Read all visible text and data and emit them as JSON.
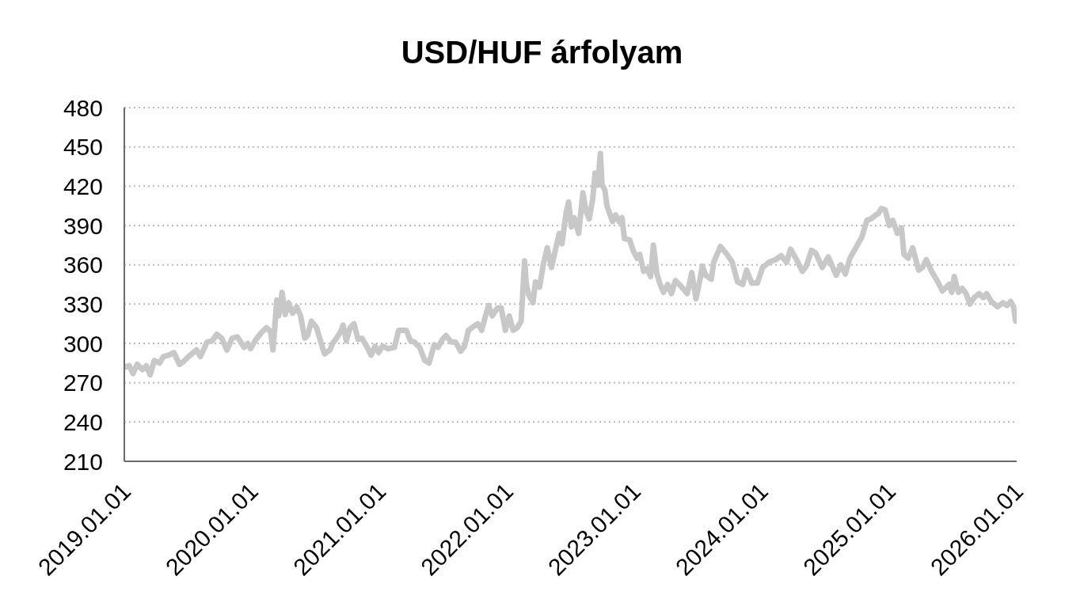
{
  "chart_data": {
    "type": "line",
    "title": "USD/HUF árfolyam",
    "x": [
      "2019-01-01",
      "2019-01-15",
      "2019-01-26",
      "2019-02-07",
      "2019-02-22",
      "2019-03-05",
      "2019-03-16",
      "2019-03-28",
      "2019-04-12",
      "2019-04-23",
      "2019-05-08",
      "2019-05-23",
      "2019-06-08",
      "2019-06-19",
      "2019-07-04",
      "2019-07-27",
      "2019-08-07",
      "2019-08-26",
      "2019-09-10",
      "2019-09-23",
      "2019-10-07",
      "2019-10-22",
      "2019-11-06",
      "2019-11-21",
      "2019-12-10",
      "2019-12-21",
      "2019-12-29",
      "2020-01-13",
      "2020-01-28",
      "2020-02-12",
      "2020-02-24",
      "2020-03-02",
      "2020-03-13",
      "2020-03-18",
      "2020-03-28",
      "2020-04-06",
      "2020-04-16",
      "2020-04-27",
      "2020-05-09",
      "2020-05-20",
      "2020-06-01",
      "2020-06-09",
      "2020-06-20",
      "2020-07-05",
      "2020-07-17",
      "2020-07-28",
      "2020-08-12",
      "2020-08-20",
      "2020-08-31",
      "2020-09-12",
      "2020-09-19",
      "2020-09-28",
      "2020-10-09",
      "2020-10-20",
      "2020-11-01",
      "2020-11-12",
      "2020-11-27",
      "2020-12-08",
      "2020-12-20",
      "2020-12-30",
      "2021-01-10",
      "2021-01-25",
      "2021-02-13",
      "2021-02-25",
      "2021-03-08",
      "2021-03-19",
      "2021-03-31",
      "2021-04-11",
      "2021-04-26",
      "2021-05-11",
      "2021-05-23",
      "2021-06-07",
      "2021-06-18",
      "2021-06-30",
      "2021-07-11",
      "2021-07-26",
      "2021-08-07",
      "2021-08-22",
      "2021-09-02",
      "2021-09-13",
      "2021-09-28",
      "2021-10-10",
      "2021-10-21",
      "2021-11-01",
      "2021-11-10",
      "2021-11-20",
      "2021-12-05",
      "2021-12-16",
      "2021-12-28",
      "2022-01-08",
      "2022-01-19",
      "2022-01-31",
      "2022-02-11",
      "2022-02-21",
      "2022-02-26",
      "2022-03-05",
      "2022-03-17",
      "2022-03-24",
      "2022-04-05",
      "2022-04-16",
      "2022-04-27",
      "2022-05-09",
      "2022-05-20",
      "2022-05-31",
      "2022-06-08",
      "2022-06-20",
      "2022-06-27",
      "2022-07-05",
      "2022-07-13",
      "2022-07-26",
      "2022-08-07",
      "2022-08-16",
      "2022-08-25",
      "2022-09-04",
      "2022-09-11",
      "2022-09-19",
      "2022-09-26",
      "2022-10-01",
      "2022-10-09",
      "2022-10-15",
      "2022-10-23",
      "2022-10-31",
      "2022-11-09",
      "2022-11-19",
      "2022-11-27",
      "2022-12-04",
      "2022-12-19",
      "2022-12-29",
      "2023-01-09",
      "2023-01-17",
      "2023-01-28",
      "2023-02-07",
      "2023-02-17",
      "2023-02-25",
      "2023-03-07",
      "2023-03-15",
      "2023-03-26",
      "2023-04-07",
      "2023-04-18",
      "2023-04-29",
      "2023-05-14",
      "2023-06-02",
      "2023-06-15",
      "2023-06-27",
      "2023-07-08",
      "2023-07-15",
      "2023-07-25",
      "2023-08-10",
      "2023-08-17",
      "2023-09-05",
      "2023-09-24",
      "2023-10-09",
      "2023-10-24",
      "2023-11-08",
      "2023-11-19",
      "2023-12-04",
      "2023-12-20",
      "2024-01-04",
      "2024-01-23",
      "2024-02-11",
      "2024-02-26",
      "2024-03-13",
      "2024-03-24",
      "2024-04-08",
      "2024-04-27",
      "2024-05-08",
      "2024-05-23",
      "2024-06-04",
      "2024-06-23",
      "2024-07-10",
      "2024-08-02",
      "2024-08-15",
      "2024-08-28",
      "2024-09-10",
      "2024-09-25",
      "2024-10-14",
      "2024-10-29",
      "2024-11-09",
      "2024-11-23",
      "2024-11-30",
      "2024-12-09",
      "2024-12-20",
      "2025-01-01",
      "2025-01-11",
      "2025-01-24",
      "2025-02-05",
      "2025-02-12",
      "2025-02-24",
      "2025-03-09",
      "2025-03-26",
      "2025-04-06",
      "2025-04-17",
      "2025-05-02",
      "2025-05-18",
      "2025-06-02",
      "2025-06-21",
      "2025-06-29",
      "2025-07-06",
      "2025-07-18",
      "2025-07-29",
      "2025-08-09",
      "2025-08-20",
      "2025-09-01",
      "2025-09-16",
      "2025-09-27",
      "2025-10-07",
      "2025-10-20",
      "2025-11-07",
      "2025-11-23",
      "2025-12-04",
      "2025-12-15",
      "2025-12-23",
      "2025-12-29",
      "2025-12-31"
    ],
    "values": [
      282,
      283,
      277,
      284,
      280,
      283,
      276,
      287,
      285,
      290,
      291,
      293,
      284,
      286,
      290,
      295,
      290,
      301,
      302,
      307,
      304,
      295,
      304,
      305,
      297,
      300,
      296,
      303,
      308,
      312,
      309,
      295,
      333,
      321,
      339,
      322,
      331,
      323,
      328,
      321,
      304,
      306,
      317,
      312,
      301,
      292,
      295,
      300,
      304,
      309,
      314,
      302,
      312,
      315,
      303,
      304,
      297,
      291,
      298,
      293,
      298,
      296,
      297,
      310,
      310,
      310,
      302,
      301,
      297,
      287,
      285,
      299,
      297,
      303,
      306,
      301,
      301,
      294,
      298,
      310,
      313,
      315,
      310,
      321,
      329,
      321,
      327,
      327,
      310,
      321,
      310,
      312,
      317,
      363,
      345,
      337,
      331,
      347,
      343,
      361,
      373,
      358,
      371,
      384,
      376,
      400,
      408,
      389,
      396,
      384,
      415,
      401,
      395,
      410,
      430,
      421,
      445,
      421,
      417,
      405,
      399,
      393,
      398,
      393,
      396,
      380,
      379,
      371,
      365,
      368,
      355,
      357,
      351,
      375,
      353,
      346,
      339,
      345,
      338,
      348,
      344,
      338,
      354,
      334,
      348,
      359,
      352,
      349,
      362,
      374,
      368,
      362,
      347,
      345,
      356,
      346,
      346,
      358,
      362,
      364,
      367,
      362,
      372,
      365,
      355,
      359,
      371,
      369,
      358,
      366,
      352,
      360,
      353,
      365,
      372,
      381,
      394,
      395,
      398,
      399,
      403,
      402,
      390,
      394,
      384,
      388,
      368,
      365,
      373,
      356,
      358,
      364,
      355,
      348,
      340,
      345,
      339,
      351,
      339,
      342,
      338,
      330,
      335,
      338,
      335,
      338,
      332,
      328,
      331,
      329,
      332,
      328,
      317,
      321
    ],
    "color": "#c8c8c8",
    "xlim": [
      "2019-01-01",
      "2026-01-01"
    ],
    "xticks": [
      {
        "value": "2019-01-01",
        "label": "2019.01.01"
      },
      {
        "value": "2020-01-01",
        "label": "2020.01.01"
      },
      {
        "value": "2021-01-01",
        "label": "2021.01.01"
      },
      {
        "value": "2022-01-01",
        "label": "2022.01.01"
      },
      {
        "value": "2023-01-01",
        "label": "2023.01.01"
      },
      {
        "value": "2024-01-01",
        "label": "2024.01.01"
      },
      {
        "value": "2025-01-01",
        "label": "2025.01.01"
      },
      {
        "value": "2026-01-01",
        "label": "2026.01.01"
      }
    ],
    "ylim": [
      210,
      480
    ],
    "yticks": [
      210,
      240,
      270,
      300,
      330,
      360,
      390,
      420,
      450,
      480
    ],
    "grid": "y",
    "marker": "none",
    "line_style": "solid"
  }
}
